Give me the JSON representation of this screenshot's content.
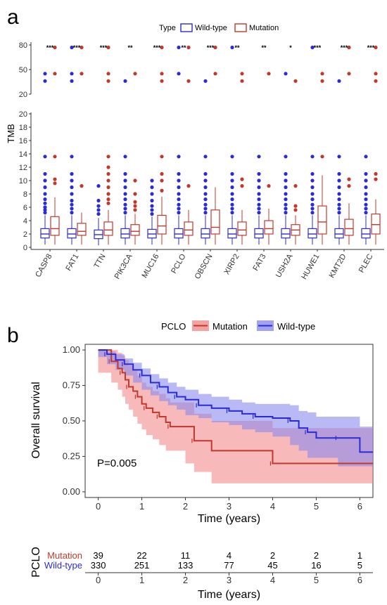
{
  "colors": {
    "wild": "#2b2bd6",
    "mut": "#c0392b",
    "mutFill": "#f28b8b",
    "wildFill": "#8b8bf0"
  },
  "chart_data": [
    {
      "panel": "a",
      "type": "box",
      "ylabel": "TMB",
      "legend": {
        "title": "Type",
        "items": [
          "Wild-type",
          "Mutation"
        ]
      },
      "categories": [
        "CASP8",
        "FAT1",
        "TTN",
        "PIK3CA",
        "MUC16",
        "PCLO",
        "OBSCN",
        "XIRP2",
        "FAT3",
        "USH2A",
        "HUWE1",
        "KMT2D",
        "PLEC"
      ],
      "significance": [
        "***",
        "***",
        "***",
        "**",
        "***",
        "**",
        "***",
        "**",
        "**",
        "*",
        "***",
        "***",
        "***"
      ],
      "yticks_upper": [
        20,
        50,
        80
      ],
      "yticks_lower": [
        0,
        2,
        4,
        6,
        8,
        10,
        12,
        14,
        16,
        18,
        20
      ],
      "wild": [
        {
          "q1": 1.4,
          "med": 2.0,
          "q3": 2.8,
          "lo": 0.4,
          "hi": 4.8,
          "out": [
            5.2,
            5.6,
            6,
            6.6,
            7.2,
            8,
            9,
            10,
            11,
            13.6,
            36,
            45
          ]
        },
        {
          "q1": 1.4,
          "med": 2.0,
          "q3": 2.8,
          "lo": 0.4,
          "hi": 4.8,
          "out": [
            5.2,
            5.8,
            6.4,
            7,
            8,
            9,
            10,
            11,
            13.6,
            36,
            45,
            77
          ]
        },
        {
          "q1": 1.3,
          "med": 1.9,
          "q3": 2.6,
          "lo": 0.3,
          "hi": 4.4,
          "out": [
            5,
            5.6,
            6.2,
            7,
            9.2
          ]
        },
        {
          "q1": 1.4,
          "med": 2.0,
          "q3": 2.8,
          "lo": 0.4,
          "hi": 4.8,
          "out": [
            5.2,
            5.8,
            6.4,
            7.2,
            8,
            9,
            10,
            11,
            13.6,
            36
          ]
        },
        {
          "q1": 1.4,
          "med": 2.0,
          "q3": 2.7,
          "lo": 0.4,
          "hi": 4.6,
          "out": [
            5,
            5.6,
            6.2,
            7,
            8,
            9,
            10
          ]
        },
        {
          "q1": 1.4,
          "med": 2.0,
          "q3": 2.8,
          "lo": 0.4,
          "hi": 4.8,
          "out": [
            5.2,
            5.8,
            6.4,
            7.2,
            8,
            9,
            10,
            11,
            13.6,
            45,
            77
          ]
        },
        {
          "q1": 1.4,
          "med": 2.0,
          "q3": 2.8,
          "lo": 0.4,
          "hi": 4.8,
          "out": [
            5.2,
            5.8,
            6.4,
            7.2,
            8,
            9,
            10,
            11,
            13.6,
            36
          ]
        },
        {
          "q1": 1.4,
          "med": 2.0,
          "q3": 2.8,
          "lo": 0.4,
          "hi": 4.8,
          "out": [
            5.2,
            5.8,
            6.4,
            7.2,
            8,
            9,
            10,
            11,
            13.6,
            77
          ]
        },
        {
          "q1": 1.4,
          "med": 2.0,
          "q3": 2.8,
          "lo": 0.4,
          "hi": 4.8,
          "out": [
            5.2,
            5.8,
            6.4,
            7.2,
            8,
            9,
            10,
            11,
            13.6
          ]
        },
        {
          "q1": 1.4,
          "med": 2.0,
          "q3": 2.8,
          "lo": 0.4,
          "hi": 4.8,
          "out": [
            5.2,
            5.8,
            6.4,
            7.2,
            8,
            9,
            10,
            11,
            13.6,
            45
          ]
        },
        {
          "q1": 1.4,
          "med": 2.0,
          "q3": 2.8,
          "lo": 0.4,
          "hi": 4.8,
          "out": [
            5.2,
            5.8,
            6.4,
            7.2,
            8,
            9,
            10,
            11,
            13.6,
            77
          ]
        },
        {
          "q1": 1.4,
          "med": 2.0,
          "q3": 2.8,
          "lo": 0.4,
          "hi": 4.8,
          "out": [
            5.2,
            5.8,
            6.4,
            7.2,
            8,
            9,
            10,
            11,
            13.6,
            36
          ]
        },
        {
          "q1": 1.4,
          "med": 2.0,
          "q3": 2.8,
          "lo": 0.4,
          "hi": 4.8,
          "out": [
            5.2,
            5.8,
            6.4,
            7.2,
            8,
            9,
            10,
            11,
            13.6
          ]
        }
      ],
      "mut": [
        {
          "q1": 1.8,
          "med": 2.8,
          "q3": 4.6,
          "lo": 0.4,
          "hi": 7.5,
          "out": [
            9.6,
            10.2,
            13.6,
            45,
            77
          ]
        },
        {
          "q1": 1.8,
          "med": 2.4,
          "q3": 3.6,
          "lo": 0.4,
          "hi": 5.2,
          "out": [
            9.2,
            45,
            77
          ]
        },
        {
          "q1": 1.8,
          "med": 2.6,
          "q3": 3.8,
          "lo": 0.4,
          "hi": 5.6,
          "out": [
            6.6,
            7.2,
            8,
            9,
            10,
            11,
            12,
            13.6,
            36,
            45,
            77
          ]
        },
        {
          "q1": 1.8,
          "med": 2.4,
          "q3": 3.4,
          "lo": 0.4,
          "hi": 5,
          "out": [
            5.6,
            6.2,
            6.8,
            8,
            10,
            45
          ]
        },
        {
          "q1": 2.0,
          "med": 3.2,
          "q3": 4.8,
          "lo": 0.4,
          "hi": 7.6,
          "out": [
            8.5,
            10,
            11,
            13.6,
            36,
            45,
            77
          ]
        },
        {
          "q1": 1.8,
          "med": 2.6,
          "q3": 3.8,
          "lo": 0.4,
          "hi": 5.6,
          "out": [
            9.2,
            36,
            77
          ]
        },
        {
          "q1": 2.0,
          "med": 3.0,
          "q3": 5.6,
          "lo": 0.4,
          "hi": 9.0,
          "out": [
            45,
            77
          ]
        },
        {
          "q1": 1.8,
          "med": 2.6,
          "q3": 3.8,
          "lo": 0.4,
          "hi": 5.6,
          "out": [
            9.2,
            10.2,
            36,
            45
          ]
        },
        {
          "q1": 2.0,
          "med": 2.8,
          "q3": 4.0,
          "lo": 0.4,
          "hi": 5.8,
          "out": [
            9.2,
            45
          ]
        },
        {
          "q1": 1.8,
          "med": 2.6,
          "q3": 3.4,
          "lo": 0.4,
          "hi": 4.8,
          "out": [
            5.6,
            6.2,
            9.2,
            36
          ]
        },
        {
          "q1": 2.0,
          "med": 3.8,
          "q3": 6.2,
          "lo": 0.4,
          "hi": 10.8,
          "out": [
            13.6,
            36,
            45
          ]
        },
        {
          "q1": 1.8,
          "med": 2.8,
          "q3": 4.2,
          "lo": 0.4,
          "hi": 6.6,
          "out": [
            9.2,
            10.2,
            45,
            77
          ]
        },
        {
          "q1": 2.0,
          "med": 3.4,
          "q3": 5.0,
          "lo": 0.4,
          "hi": 7.2,
          "out": [
            10.2,
            11,
            36,
            45,
            77
          ]
        }
      ]
    },
    {
      "panel": "b",
      "type": "line",
      "xlabel": "Time (years)",
      "ylabel": "Overall survival",
      "legend": {
        "title": "PCLO",
        "items": [
          "Mutation",
          "Wild-type"
        ]
      },
      "xticks": [
        0,
        1,
        2,
        3,
        4,
        5,
        6
      ],
      "yticks": [
        0.0,
        0.25,
        0.5,
        0.75,
        1.0
      ],
      "pvalue": "P=0.005",
      "series": [
        {
          "name": "Mutation",
          "x": [
            0,
            0.3,
            0.45,
            0.55,
            0.62,
            0.7,
            0.8,
            0.9,
            1.0,
            1.1,
            1.25,
            1.4,
            1.55,
            1.65,
            2.0,
            2.2,
            2.6,
            4.0,
            6.3
          ],
          "y": [
            1.0,
            0.92,
            0.87,
            0.84,
            0.79,
            0.74,
            0.71,
            0.67,
            0.62,
            0.59,
            0.56,
            0.53,
            0.49,
            0.46,
            0.46,
            0.36,
            0.29,
            0.2,
            0.2
          ],
          "lo": [
            1.0,
            0.84,
            0.77,
            0.72,
            0.67,
            0.62,
            0.58,
            0.53,
            0.48,
            0.44,
            0.4,
            0.37,
            0.33,
            0.29,
            0.29,
            0.2,
            0.14,
            0.06,
            0.06
          ],
          "hi": [
            1.0,
            1.0,
            0.98,
            0.96,
            0.93,
            0.89,
            0.86,
            0.82,
            0.77,
            0.74,
            0.71,
            0.69,
            0.66,
            0.63,
            0.63,
            0.55,
            0.5,
            0.45,
            0.45
          ]
        },
        {
          "name": "Wild-type",
          "x": [
            0,
            0.2,
            0.4,
            0.6,
            0.8,
            1.0,
            1.2,
            1.4,
            1.6,
            1.8,
            2.0,
            2.3,
            2.6,
            3.0,
            3.3,
            3.6,
            4.0,
            4.4,
            4.6,
            4.8,
            5.0,
            5.5,
            6.0,
            6.3
          ],
          "y": [
            1.0,
            0.97,
            0.93,
            0.9,
            0.86,
            0.82,
            0.77,
            0.74,
            0.7,
            0.67,
            0.65,
            0.61,
            0.59,
            0.57,
            0.55,
            0.53,
            0.52,
            0.5,
            0.45,
            0.42,
            0.38,
            0.38,
            0.28,
            0.28
          ],
          "lo": [
            1.0,
            0.95,
            0.9,
            0.86,
            0.82,
            0.77,
            0.72,
            0.68,
            0.64,
            0.61,
            0.58,
            0.54,
            0.52,
            0.49,
            0.47,
            0.44,
            0.42,
            0.39,
            0.33,
            0.29,
            0.24,
            0.24,
            0.18,
            0.18
          ],
          "hi": [
            1.0,
            0.99,
            0.97,
            0.94,
            0.91,
            0.87,
            0.83,
            0.8,
            0.77,
            0.74,
            0.72,
            0.69,
            0.67,
            0.65,
            0.63,
            0.62,
            0.62,
            0.61,
            0.57,
            0.56,
            0.53,
            0.53,
            0.46,
            0.46
          ]
        }
      ],
      "risk_table": {
        "title": "PCLO",
        "rows": [
          {
            "label": "Mutation",
            "values": [
              39,
              22,
              11,
              4,
              2,
              2,
              1
            ]
          },
          {
            "label": "Wild-type",
            "values": [
              330,
              251,
              133,
              77,
              45,
              16,
              5
            ]
          }
        ],
        "xlabel": "Time (years)"
      }
    }
  ],
  "labels": {
    "panel_a": "a",
    "panel_b": "b"
  }
}
